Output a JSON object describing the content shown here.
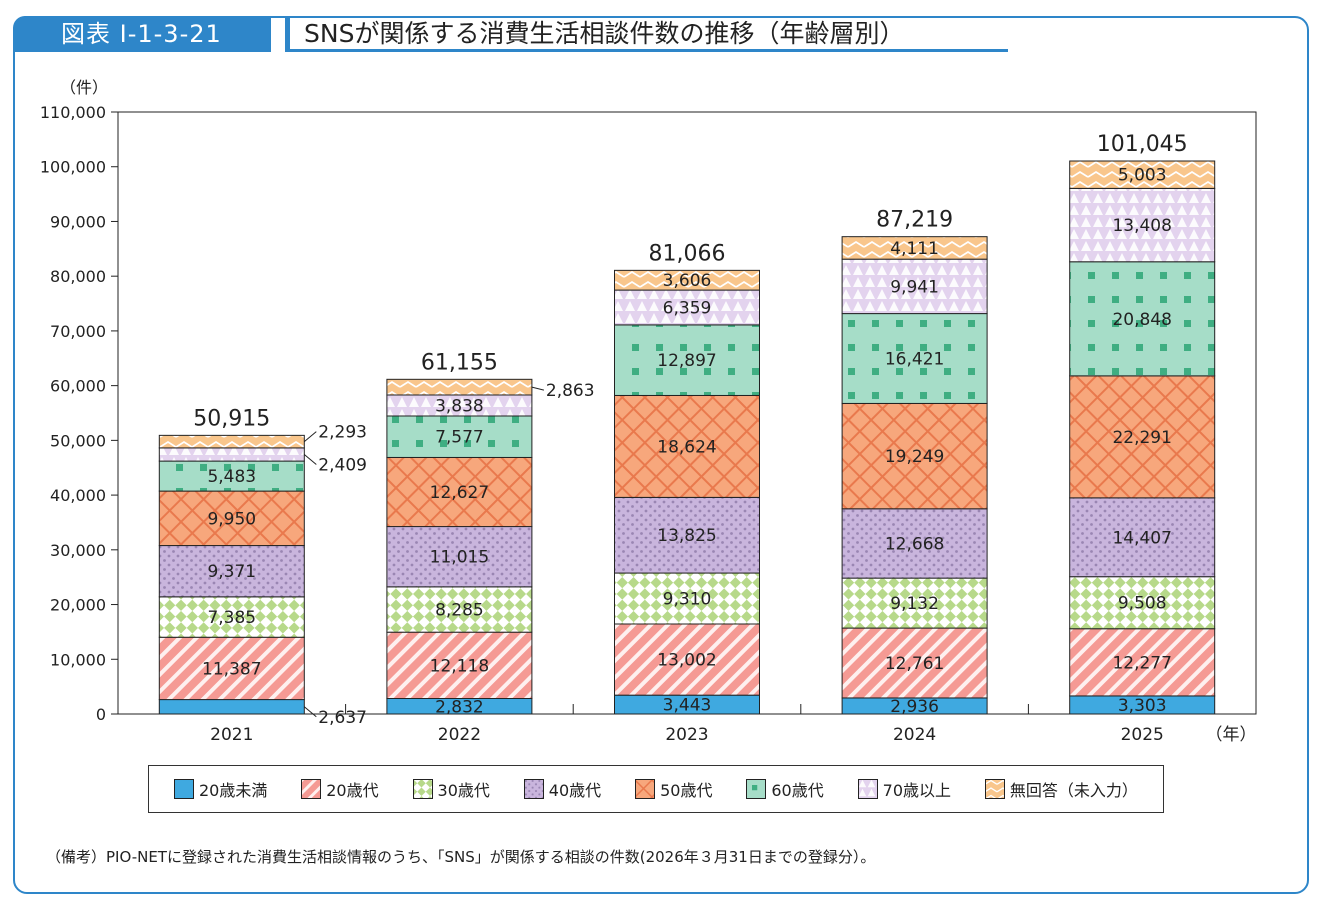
{
  "figure": {
    "tag": "図表 I-1-3-21",
    "title": "SNSが関係する消費生活相談件数の推移（年齢層別）"
  },
  "note": "（備考）PIO-NETに登録された消費生活相談情報のうち、「SNS」が関係する相談の件数(2026年３月31日までの登録分）。",
  "chart_data": {
    "type": "bar",
    "stacked": true,
    "categories": [
      "2021",
      "2022",
      "2023",
      "2024",
      "2025"
    ],
    "y_unit_label": "（件）",
    "x_unit_label": "（年）",
    "ylim": [
      0,
      110000
    ],
    "yticks": [
      0,
      10000,
      20000,
      30000,
      40000,
      50000,
      60000,
      70000,
      80000,
      90000,
      100000,
      110000
    ],
    "ytick_labels": [
      "0",
      "10,000",
      "20,000",
      "30,000",
      "40,000",
      "50,000",
      "60,000",
      "70,000",
      "80,000",
      "90,000",
      "100,000",
      "110,000"
    ],
    "series": [
      {
        "name": "20歳未満",
        "values": [
          2637,
          2832,
          3443,
          2936,
          3303
        ],
        "labels": [
          "2,637",
          "2,832",
          "3,443",
          "2,936",
          "3,303"
        ],
        "color": "#3fa9e0",
        "pattern": "solid"
      },
      {
        "name": "20歳代",
        "values": [
          11387,
          12118,
          13002,
          12761,
          12277
        ],
        "labels": [
          "11,387",
          "12,118",
          "13,002",
          "12,761",
          "12,277"
        ],
        "color": "#f59a94",
        "pattern": "diagonal"
      },
      {
        "name": "30歳代",
        "values": [
          7385,
          8285,
          9310,
          9132,
          9508
        ],
        "labels": [
          "7,385",
          "8,285",
          "9,310",
          "9,132",
          "9,508"
        ],
        "color": "#b7d98a",
        "pattern": "checker"
      },
      {
        "name": "40歳代",
        "values": [
          9371,
          11015,
          13825,
          12668,
          14407
        ],
        "labels": [
          "9,371",
          "11,015",
          "13,825",
          "12,668",
          "14,407"
        ],
        "color": "#c9b5dd",
        "pattern": "dots"
      },
      {
        "name": "50歳代",
        "values": [
          9950,
          12627,
          18624,
          19249,
          22291
        ],
        "labels": [
          "9,950",
          "12,627",
          "18,624",
          "19,249",
          "22,291"
        ],
        "color": "#f7a77c",
        "pattern": "crosshatch"
      },
      {
        "name": "60歳代",
        "values": [
          5483,
          7577,
          12897,
          16421,
          20848
        ],
        "labels": [
          "5,483",
          "7,577",
          "12,897",
          "16,421",
          "20,848"
        ],
        "color": "#a6ddc8",
        "pattern": "squares"
      },
      {
        "name": "70歳以上",
        "values": [
          2409,
          3838,
          6359,
          9941,
          13408
        ],
        "labels": [
          "2,409",
          "3,838",
          "6,359",
          "9,941",
          "13,408"
        ],
        "color": "#e3d3ee",
        "pattern": "triangles"
      },
      {
        "name": "無回答（未入力）",
        "values": [
          2293,
          2863,
          3606,
          4111,
          5003
        ],
        "labels": [
          "2,293",
          "2,863",
          "3,606",
          "4,111",
          "5,003"
        ],
        "color": "#f9c68c",
        "pattern": "zigzag"
      }
    ],
    "totals": [
      50915,
      61155,
      81066,
      87219,
      101045
    ],
    "total_labels": [
      "50,915",
      "61,155",
      "81,066",
      "87,219",
      "101,045"
    ],
    "legend_position": "bottom"
  }
}
